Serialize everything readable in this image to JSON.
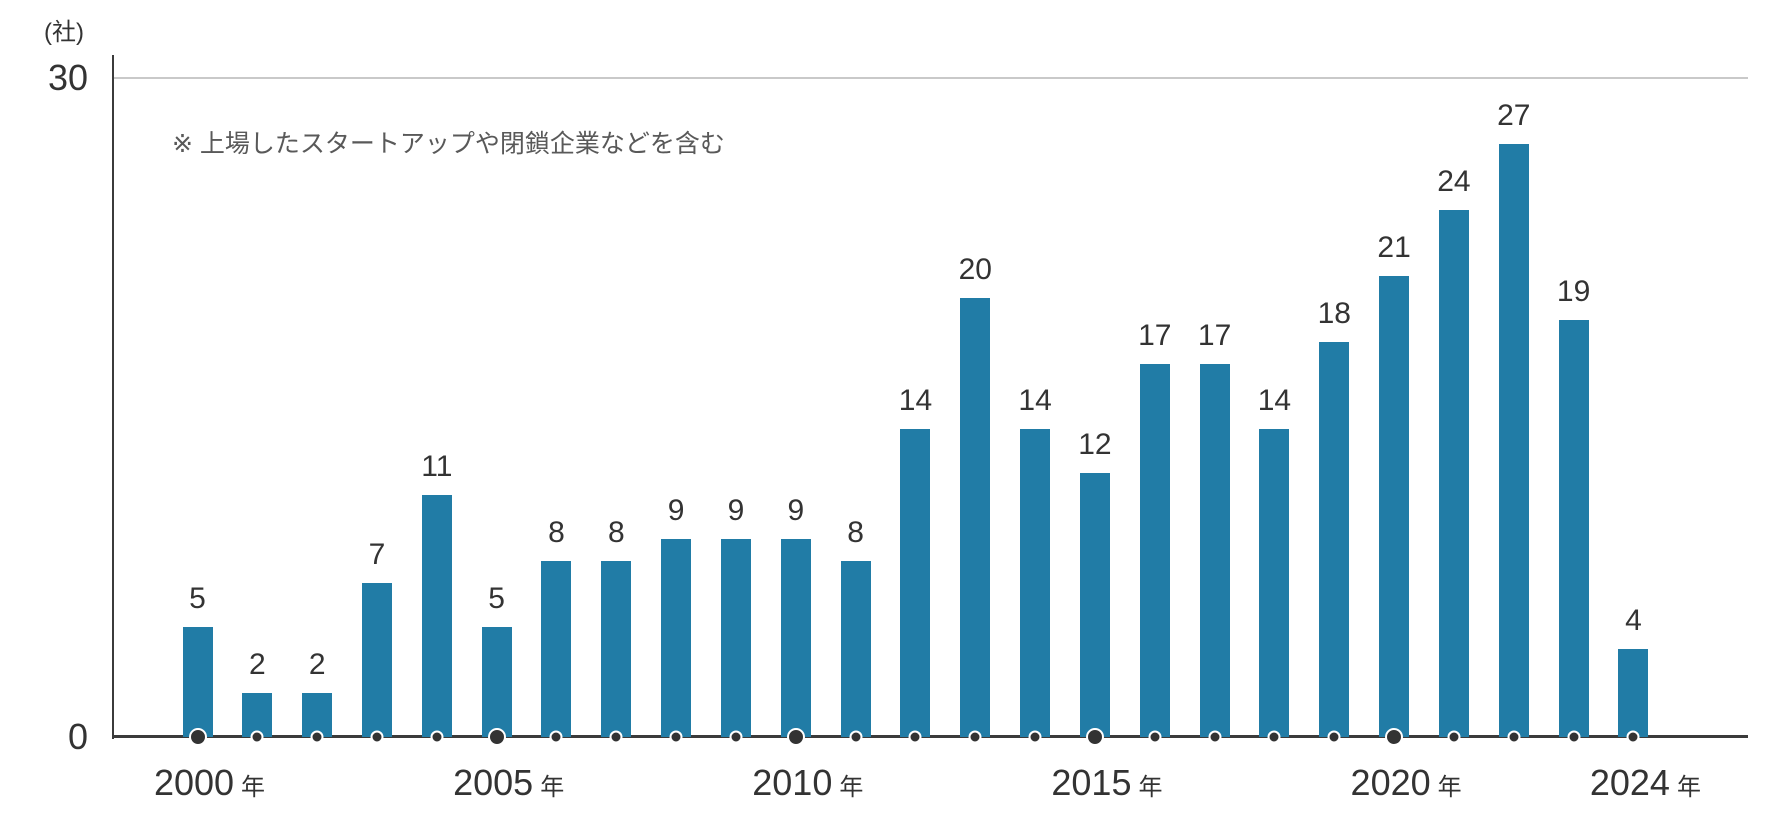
{
  "chart_data": {
    "type": "bar",
    "title": "",
    "unit_label": "(社)",
    "note": "※ 上場したスタートアップや閉鎖企業などを含む",
    "categories": [
      2000,
      2001,
      2002,
      2003,
      2004,
      2005,
      2006,
      2007,
      2008,
      2009,
      2010,
      2011,
      2012,
      2013,
      2014,
      2015,
      2016,
      2017,
      2018,
      2019,
      2020,
      2021,
      2022,
      2023,
      2024
    ],
    "values": [
      5,
      2,
      2,
      7,
      11,
      5,
      8,
      8,
      9,
      9,
      9,
      8,
      14,
      20,
      14,
      12,
      17,
      17,
      14,
      18,
      21,
      24,
      27,
      19,
      4
    ],
    "xlabel": "",
    "ylabel": "(社)",
    "ylim": [
      0,
      30
    ],
    "y_ticks": [
      0,
      30
    ],
    "y_tick_top_label": "30",
    "y_tick_bottom_label": "0",
    "x_tick_years": [
      2000,
      2005,
      2010,
      2015,
      2020,
      2024
    ],
    "x_major_dot_years": [
      2000,
      2005,
      2010,
      2015,
      2020
    ],
    "year_suffix": "年",
    "grid": "top gridline at y=30 only",
    "legend": "none",
    "bar_color": "#217CA6",
    "axis_color": "#3b3b3b",
    "dot_color": "#333333",
    "grid_color": "#c9c9c9",
    "label_color": "#333333",
    "note_color": "#595959"
  }
}
